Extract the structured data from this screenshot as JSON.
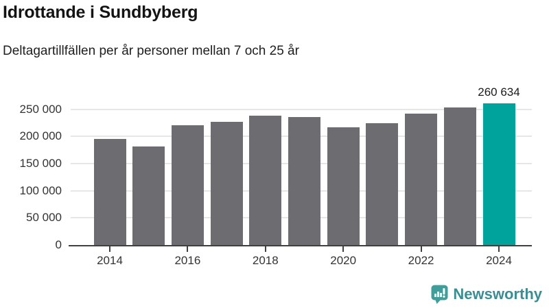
{
  "title": "Idrottande i Sundbyberg",
  "subtitle": "Deltagartillfällen per år personer mellan 7 och 25 år",
  "footer": {
    "brand": "Newsworthy",
    "logo_icon": "newsworthy-chart-bubble-icon"
  },
  "colors": {
    "bar": "#6d6d71",
    "highlight": "#00a39b",
    "gridline": "#e6e6e6",
    "axis": "#3f3f3f",
    "tick_text": "#333333",
    "brand": "#3a8e93",
    "logo_icon": "#3f9e99"
  },
  "chart_data": {
    "type": "bar",
    "title": "Idrottande i Sundbyberg",
    "subtitle": "Deltagartillfällen per år personer mellan 7 och 25 år",
    "categories": [
      "2014",
      "2015",
      "2016",
      "2017",
      "2018",
      "2019",
      "2020",
      "2021",
      "2022",
      "2023",
      "2024"
    ],
    "values": [
      195000,
      182000,
      220000,
      227000,
      238000,
      236000,
      217000,
      225000,
      242000,
      253000,
      260634
    ],
    "highlight_index": 10,
    "annotation": {
      "text": "260 634",
      "category": "2024"
    },
    "x_tick_labels": [
      "2014",
      "2016",
      "2018",
      "2020",
      "2022",
      "2024"
    ],
    "x_tick_indices": [
      0,
      2,
      4,
      6,
      8,
      10
    ],
    "y_ticks": [
      0,
      50000,
      100000,
      150000,
      200000,
      250000
    ],
    "y_tick_labels": [
      "0",
      "50 000",
      "100 000",
      "150 000",
      "200 000",
      "250 000"
    ],
    "ylim": [
      0,
      265000
    ],
    "grid": true,
    "legend": false,
    "xlabel": "",
    "ylabel": ""
  }
}
